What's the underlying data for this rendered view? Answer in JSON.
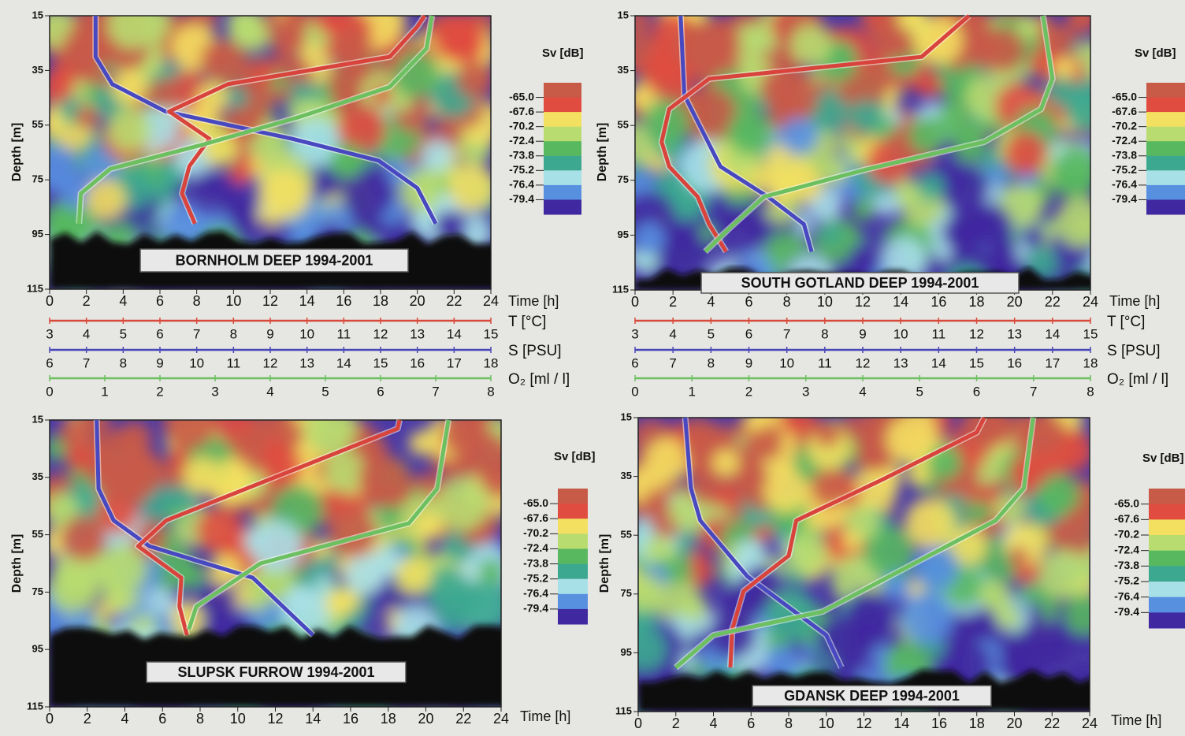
{
  "chart_data": [
    {
      "type": "line",
      "title": "BORNHOLM DEEP  1994-2001",
      "xlabel": "Time [h]",
      "ylabel": "Depth [m]",
      "xlim": [
        0,
        24
      ],
      "xticks": [
        0,
        2,
        4,
        6,
        8,
        10,
        12,
        14,
        16,
        18,
        20,
        22,
        24
      ],
      "ylim": [
        15,
        115
      ],
      "yticks": [
        15,
        35,
        55,
        75,
        95,
        115
      ],
      "y_reversed": true,
      "colorbar": {
        "label": "Sv [dB]",
        "ticks": [
          {
            "value": -65,
            "label": "-65.0"
          },
          -67.6,
          -70.2,
          -72.4,
          -73.8,
          -75.2,
          -76.4,
          -79.4
        ],
        "colors": [
          "#c85a48",
          "#e04c40",
          "#f4e060",
          "#b8dc70",
          "#58b860",
          "#3ca890",
          "#a8e0e8",
          "#5890e0",
          "#4028a0"
        ]
      },
      "secondary_axes": [
        {
          "label": "T  [°C]",
          "lim": [
            3,
            15
          ],
          "ticks": [
            3,
            4,
            5,
            6,
            7,
            8,
            9,
            10,
            11,
            12,
            13,
            14,
            15
          ],
          "color": "#d84a3c"
        },
        {
          "label": "S  [PSU]",
          "lim": [
            6,
            18
          ],
          "ticks": [
            6,
            7,
            8,
            9,
            10,
            11,
            12,
            13,
            14,
            15,
            16,
            17,
            18
          ],
          "color": "#4848b8"
        },
        {
          "label": "O₂ [ml / l]",
          "lim": [
            0,
            8
          ],
          "ticks": [
            0,
            1,
            2,
            3,
            4,
            5,
            6,
            7,
            8
          ],
          "color": "#6cc060"
        }
      ],
      "series": [
        {
          "color": "#4848c0",
          "x": [
            2.5,
            2.5,
            3.4,
            6.3,
            13.2,
            17.9,
            20,
            21
          ],
          "values": [
            15,
            30,
            40,
            50,
            60,
            68,
            78,
            91
          ]
        },
        {
          "color": "#d8443c",
          "x": [
            20.4,
            20,
            18.5,
            9.7,
            6.5,
            8.7,
            7.6,
            7.2,
            7.9
          ],
          "values": [
            15,
            19,
            30,
            40,
            50,
            60,
            70,
            80,
            91
          ]
        },
        {
          "color": "#6cc060",
          "x": [
            20.8,
            20.5,
            18.5,
            13.6,
            8.4,
            3.3,
            1.7,
            1.6
          ],
          "values": [
            15,
            27,
            41,
            52,
            62,
            71,
            80,
            91
          ]
        }
      ]
    },
    {
      "type": "line",
      "title": "SOUTH GOTLAND DEEP  1994-2001",
      "xlabel": "Time [h]",
      "ylabel": "Depth [m]",
      "xlim": [
        0,
        24
      ],
      "xticks": [
        0,
        2,
        4,
        6,
        8,
        10,
        12,
        14,
        16,
        18,
        20,
        22,
        24
      ],
      "ylim": [
        15,
        115
      ],
      "yticks": [
        15,
        35,
        55,
        75,
        95,
        115
      ],
      "y_reversed": true,
      "colorbar": {
        "label": "Sv [dB]",
        "ticks": [
          {
            "value": -65,
            "label": "-65.0"
          },
          -67.6,
          -70.2,
          -72.4,
          -73.8,
          -75.2,
          -76.4,
          -79.4
        ],
        "colors": [
          "#c85a48",
          "#e04c40",
          "#f4e060",
          "#b8dc70",
          "#58b860",
          "#3ca890",
          "#a8e0e8",
          "#5890e0",
          "#4028a0"
        ]
      },
      "secondary_axes": [
        {
          "label": "T  [°C]",
          "lim": [
            3,
            15
          ],
          "ticks": [
            3,
            4,
            5,
            6,
            7,
            8,
            9,
            10,
            11,
            12,
            13,
            14,
            15
          ],
          "color": "#d84a3c"
        },
        {
          "label": "S  [PSU]",
          "lim": [
            6,
            18
          ],
          "ticks": [
            6,
            7,
            8,
            9,
            10,
            11,
            12,
            13,
            14,
            15,
            16,
            17,
            18
          ],
          "color": "#4848b8"
        },
        {
          "label": "O₂ [ml / l]",
          "lim": [
            0,
            8
          ],
          "ticks": [
            0,
            1,
            2,
            3,
            4,
            5,
            6,
            7,
            8
          ],
          "color": "#6cc060"
        }
      ],
      "series": [
        {
          "color": "#4848c0",
          "x": [
            2.4,
            2.6,
            4.5,
            7,
            8.9,
            9.3
          ],
          "values": [
            15,
            44,
            70,
            81,
            91,
            101
          ]
        },
        {
          "color": "#d8443c",
          "x": [
            17.6,
            15.1,
            3.9,
            1.8,
            1.4,
            1.8,
            3.3,
            3.9,
            4.8
          ],
          "values": [
            15,
            30,
            38,
            49,
            61,
            70,
            81,
            91,
            101
          ]
        },
        {
          "color": "#6cc060",
          "x": [
            21.5,
            22,
            21.4,
            18.4,
            12.2,
            6.8,
            4.9,
            3.7
          ],
          "values": [
            15,
            38,
            49,
            61,
            71,
            81,
            93,
            101
          ]
        }
      ]
    },
    {
      "type": "line",
      "title": "SLUPSK FURROW 1994-2001",
      "xlabel": "Time [h]",
      "ylabel": "Depth [m]",
      "xlim": [
        0,
        24
      ],
      "xticks": [
        0,
        2,
        4,
        6,
        8,
        10,
        12,
        14,
        16,
        18,
        20,
        22,
        24
      ],
      "ylim": [
        15,
        115
      ],
      "yticks": [
        15,
        35,
        55,
        75,
        95,
        115
      ],
      "y_reversed": true,
      "colorbar": {
        "label": "Sv [dB]",
        "ticks": [
          {
            "value": -65,
            "label": "-65.0"
          },
          -67.6,
          -70.2,
          -72.4,
          -73.8,
          -75.2,
          -76.4,
          -79.4
        ],
        "colors": [
          "#c85a48",
          "#e04c40",
          "#f4e060",
          "#b8dc70",
          "#58b860",
          "#3ca890",
          "#a8e0e8",
          "#5890e0",
          "#4028a0"
        ]
      },
      "series": [
        {
          "color": "#4848c0",
          "x": [
            2.5,
            2.6,
            3.4,
            5.3,
            10.8,
            14
          ],
          "values": [
            15,
            39,
            50,
            59,
            70,
            90
          ]
        },
        {
          "color": "#d8443c",
          "x": [
            18.6,
            18.5,
            6.2,
            4.7,
            7,
            6.9,
            7.3
          ],
          "values": [
            15,
            18,
            50,
            59,
            70,
            80,
            90
          ]
        },
        {
          "color": "#6cc060",
          "x": [
            21.2,
            20.6,
            19.1,
            11.2,
            7.8,
            7.4
          ],
          "values": [
            15,
            39,
            51,
            65,
            80,
            88
          ]
        }
      ]
    },
    {
      "type": "line",
      "title": "GDANSK  DEEP  1994-2001",
      "xlabel": "Time [h]",
      "ylabel": "Depth [m]",
      "xlim": [
        0,
        24
      ],
      "xticks": [
        0,
        2,
        4,
        6,
        8,
        10,
        12,
        14,
        16,
        18,
        20,
        22,
        24
      ],
      "ylim": [
        15,
        115
      ],
      "yticks": [
        15,
        35,
        55,
        75,
        95,
        115
      ],
      "y_reversed": true,
      "colorbar": {
        "label": "Sv [dB]",
        "ticks": [
          {
            "value": -65,
            "label": "-65.0"
          },
          -67.6,
          -70.2,
          -72.4,
          -73.8,
          -75.2,
          -76.4,
          -79.4
        ],
        "colors": [
          "#c85a48",
          "#e04c40",
          "#f4e060",
          "#b8dc70",
          "#58b860",
          "#3ca890",
          "#a8e0e8",
          "#5890e0",
          "#4028a0"
        ]
      },
      "series": [
        {
          "color": "#4848c0",
          "x": [
            2.5,
            2.8,
            3.3,
            5.8,
            10,
            10.8
          ],
          "values": [
            15,
            39,
            50,
            69,
            89,
            100
          ]
        },
        {
          "color": "#d8443c",
          "x": [
            18.4,
            18,
            13,
            8.4,
            8,
            5.6,
            5,
            4.9
          ],
          "values": [
            15,
            20,
            36,
            50,
            62,
            74,
            87,
            100
          ]
        },
        {
          "color": "#6cc060",
          "x": [
            21,
            20.5,
            19,
            9.8,
            4,
            2
          ],
          "values": [
            15,
            39,
            50,
            81,
            89,
            100
          ]
        }
      ]
    }
  ]
}
